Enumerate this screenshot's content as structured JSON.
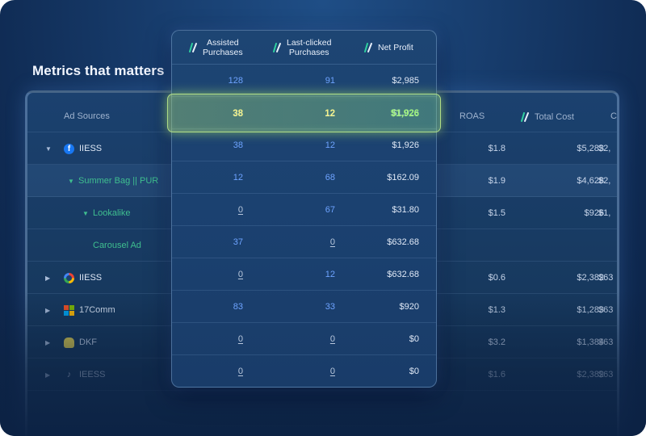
{
  "page": {
    "title": "Metrics that matters"
  },
  "back_table": {
    "headers": {
      "source": "Ad Sources",
      "roas": "ROAS",
      "total_cost": "Total Cost",
      "cut": "C"
    },
    "rows": [
      {
        "source": "IIESS",
        "icon": "facebook-icon",
        "roas": "$1.8",
        "cost": "$5,283",
        "cut": "$2,"
      },
      {
        "source": "Summer Bag || PUR",
        "roas": "$1.9",
        "cost": "$4,628",
        "cut": "$2,"
      },
      {
        "source": "Lookalike",
        "roas": "$1.5",
        "cost": "$926",
        "cut": "$1,"
      },
      {
        "source": "Carousel Ad",
        "roas": "",
        "cost": "",
        "cut": ""
      },
      {
        "source": "IIESS",
        "icon": "google-icon",
        "roas": "$0.6",
        "cost": "$2,382",
        "cut": "$63"
      },
      {
        "source": "17Comm",
        "icon": "microsoft-icon",
        "roas": "$1.3",
        "cost": "$1,283",
        "cut": "$63"
      },
      {
        "source": "DKF",
        "icon": "snapchat-icon",
        "roas": "$3.2",
        "cost": "$1,384",
        "cut": "$63"
      },
      {
        "source": "IEESS",
        "icon": "tiktok-icon",
        "roas": "$1.6",
        "cost": "$2,382",
        "cut": "$63"
      }
    ]
  },
  "front_table": {
    "headers": {
      "assisted_line1": "Assisted",
      "assisted_line2": "Purchases",
      "last_clicked_line1": "Last-clicked",
      "last_clicked_line2": "Purchases",
      "net_profit": "Net Profit"
    },
    "rows": [
      {
        "assisted": "128",
        "last_clicked": "91",
        "net_profit": "$2,985"
      },
      {
        "assisted": "38",
        "last_clicked": "12",
        "net_profit": "$1,926"
      },
      {
        "assisted": "38",
        "last_clicked": "12",
        "net_profit": "$1,926"
      },
      {
        "assisted": "12",
        "last_clicked": "68",
        "net_profit": "$162.09"
      },
      {
        "assisted": "0",
        "last_clicked": "67",
        "net_profit": "$31.80"
      },
      {
        "assisted": "37",
        "last_clicked": "0",
        "net_profit": "$632.68"
      },
      {
        "assisted": "0",
        "last_clicked": "12",
        "net_profit": "$632.68"
      },
      {
        "assisted": "83",
        "last_clicked": "33",
        "net_profit": "$920"
      },
      {
        "assisted": "0",
        "last_clicked": "0",
        "net_profit": "$0"
      },
      {
        "assisted": "0",
        "last_clicked": "0",
        "net_profit": "$0"
      }
    ]
  },
  "colors": {
    "background": "#173c6c",
    "blue_value": "#6ea3ff",
    "green_source": "#3fbf8f",
    "highlight_yellow": "#f3f08a",
    "highlight_green": "#9df07c"
  }
}
